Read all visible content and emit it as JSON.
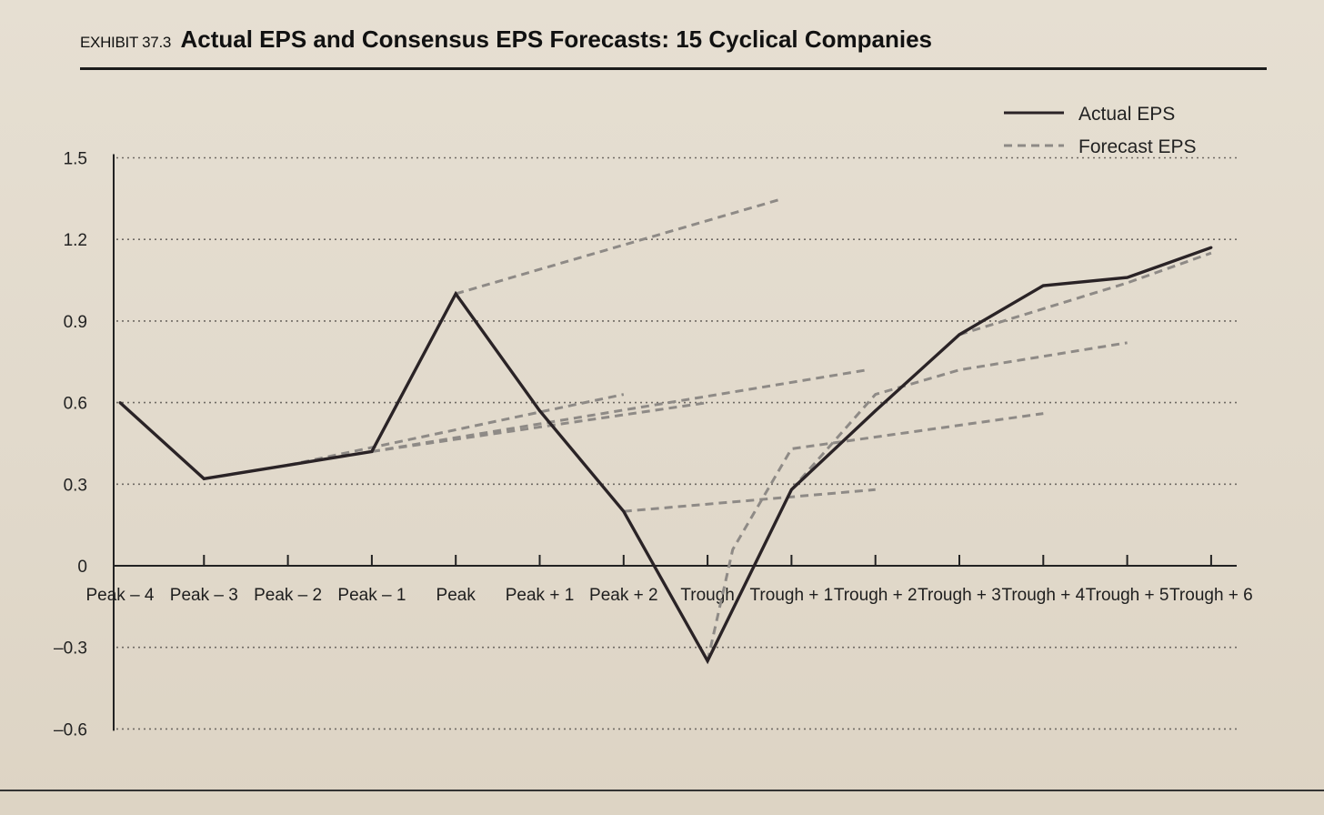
{
  "header": {
    "exhibit": "EXHIBIT 37.3",
    "title": "Actual EPS and Consensus EPS Forecasts: 15 Cyclical Companies"
  },
  "colors": {
    "actual": "#2a2326",
    "forecast": "#8e8a86",
    "grid": "#6f6a64",
    "axis": "#222222"
  },
  "chart_data": {
    "type": "line",
    "title": "Actual EPS and Consensus EPS Forecasts: 15 Cyclical Companies",
    "xlabel": "",
    "ylabel": "",
    "ylim": [
      -0.6,
      1.5
    ],
    "yticks": [
      -0.6,
      -0.3,
      0,
      0.3,
      0.6,
      0.9,
      1.2,
      1.5
    ],
    "ytick_labels": [
      "–0.6",
      "–0.3",
      "0",
      "0.3",
      "0.6",
      "0.9",
      "1.2",
      "1.5"
    ],
    "categories": [
      "Peak – 4",
      "Peak – 3",
      "Peak – 2",
      "Peak – 1",
      "Peak",
      "Peak  + 1",
      "Peak  + 2",
      "Trough",
      "Trough + 1",
      "Trough + 2",
      "Trough + 3",
      "Trough + 4",
      "Trough + 5",
      "Trough + 6"
    ],
    "grid": true,
    "legend": {
      "position": "top-right",
      "entries": [
        {
          "name": "Actual EPS",
          "style": "solid"
        },
        {
          "name": "Forecast EPS",
          "style": "dashed"
        }
      ]
    },
    "series": [
      {
        "name": "Actual EPS",
        "style": "solid",
        "values": [
          0.6,
          0.32,
          0.37,
          0.42,
          1.0,
          0.57,
          0.2,
          -0.35,
          0.28,
          0.57,
          0.85,
          1.03,
          1.06,
          1.17
        ]
      }
    ],
    "forecast_series": [
      {
        "name": "Forecast EPS",
        "points": [
          [
            4,
            1.0
          ],
          [
            7.9,
            1.35
          ]
        ]
      },
      {
        "name": "Forecast EPS",
        "points": [
          [
            2,
            0.37
          ],
          [
            6,
            0.63
          ]
        ]
      },
      {
        "name": "Forecast EPS",
        "points": [
          [
            3,
            0.42
          ],
          [
            7,
            0.6
          ]
        ]
      },
      {
        "name": "Forecast EPS",
        "points": [
          [
            3,
            0.42
          ],
          [
            8.9,
            0.72
          ]
        ]
      },
      {
        "name": "Forecast EPS",
        "points": [
          [
            6,
            0.2
          ],
          [
            9,
            0.28
          ]
        ]
      },
      {
        "name": "Forecast EPS",
        "points": [
          [
            7,
            -0.35
          ],
          [
            7.3,
            0.06
          ],
          [
            8,
            0.43
          ],
          [
            11,
            0.56
          ]
        ]
      },
      {
        "name": "Forecast EPS",
        "points": [
          [
            8,
            0.28
          ],
          [
            9,
            0.63
          ],
          [
            10,
            0.72
          ],
          [
            12,
            0.82
          ]
        ]
      },
      {
        "name": "Forecast EPS",
        "points": [
          [
            10,
            0.85
          ],
          [
            12,
            1.04
          ],
          [
            13,
            1.15
          ]
        ]
      }
    ]
  }
}
